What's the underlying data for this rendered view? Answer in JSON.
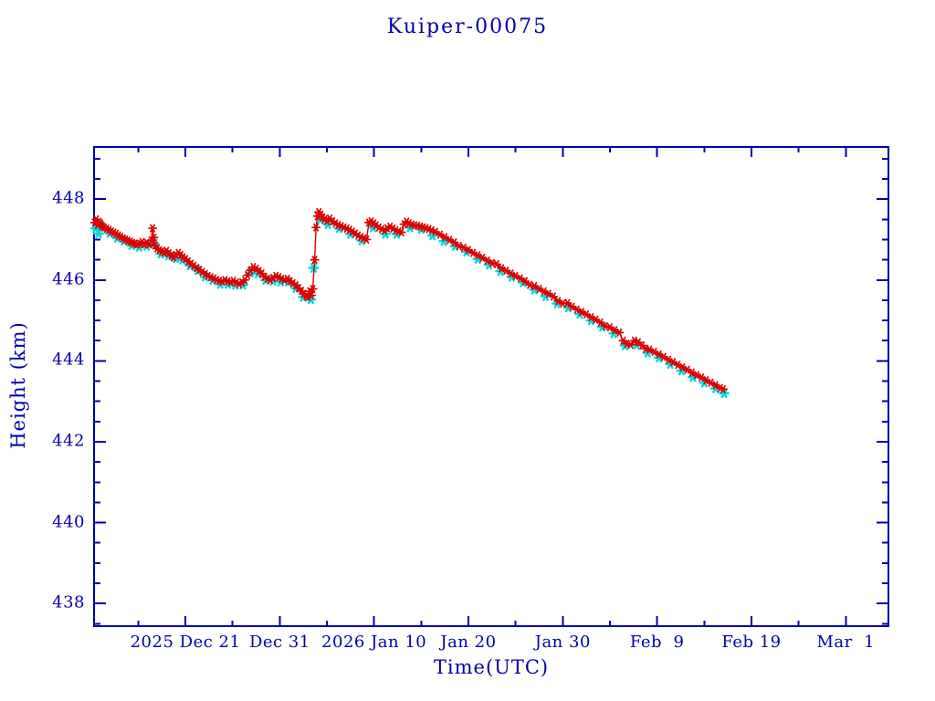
{
  "title": "Kuiper-00075",
  "colors": {
    "background": "#ffffff",
    "axis": "#0000aa",
    "text": "#0000aa",
    "red_series": "#dd0000",
    "cyan_series": "#00dcdc"
  },
  "chart_data": {
    "type": "line",
    "title": "Kuiper-00075",
    "xlabel": "Time(UTC)",
    "ylabel": "Height (km)",
    "grid": false,
    "legend": "none",
    "x_unit_days_since": "2025-12-21 00:00 UTC",
    "x_range": [
      -9.68,
      74.52
    ],
    "y_range": [
      437.44,
      449.29
    ],
    "x_major_ticks": [
      {
        "t": 0,
        "label": "2025 Dec 21"
      },
      {
        "t": 10,
        "label": "Dec 31"
      },
      {
        "t": 20,
        "label": "2026 Jan 10"
      },
      {
        "t": 30,
        "label": "Jan 20"
      },
      {
        "t": 40,
        "label": "Jan 30"
      },
      {
        "t": 50,
        "label": "Feb  9"
      },
      {
        "t": 60,
        "label": "Feb 19"
      },
      {
        "t": 70,
        "label": "Mar  1"
      }
    ],
    "x_minor_ticks": [
      -5,
      5,
      15,
      25,
      35,
      45,
      55,
      65
    ],
    "y_major_ticks": [
      448,
      446,
      444,
      442,
      440,
      438
    ],
    "y_minor_ticks": [
      449,
      448.5,
      447.5,
      447,
      446.5,
      445.5,
      445,
      444.5,
      443.5,
      443,
      442.5,
      441.5,
      441,
      440.5,
      439.5,
      439,
      438.5,
      437.5
    ],
    "series": [
      {
        "name": "height-red-asterisk",
        "marker": "asterisk",
        "color": "#dd0000",
        "connected": true,
        "points": [
          [
            -9.6,
            447.42
          ],
          [
            -9.45,
            447.5
          ],
          [
            -9.3,
            447.36
          ],
          [
            -9.15,
            447.44
          ],
          [
            -9.0,
            447.4
          ],
          [
            -8.8,
            447.32
          ],
          [
            -8.6,
            447.3
          ],
          [
            -8.35,
            447.27
          ],
          [
            -8.1,
            447.24
          ],
          [
            -7.85,
            447.2
          ],
          [
            -7.6,
            447.17
          ],
          [
            -7.35,
            447.14
          ],
          [
            -7.1,
            447.1
          ],
          [
            -6.85,
            447.07
          ],
          [
            -6.6,
            447.03
          ],
          [
            -6.35,
            447.0
          ],
          [
            -6.1,
            446.97
          ],
          [
            -5.85,
            446.95
          ],
          [
            -5.6,
            446.92
          ],
          [
            -5.35,
            446.9
          ],
          [
            -5.1,
            446.88
          ],
          [
            -4.85,
            446.9
          ],
          [
            -4.6,
            446.94
          ],
          [
            -4.35,
            446.88
          ],
          [
            -4.1,
            446.92
          ],
          [
            -3.85,
            446.88
          ],
          [
            -3.6,
            446.98
          ],
          [
            -3.48,
            447.28
          ],
          [
            -3.35,
            447.05
          ],
          [
            -3.2,
            446.85
          ],
          [
            -3.0,
            446.78
          ],
          [
            -2.75,
            446.74
          ],
          [
            -2.5,
            446.71
          ],
          [
            -2.25,
            446.68
          ],
          [
            -2.0,
            446.72
          ],
          [
            -1.75,
            446.66
          ],
          [
            -1.5,
            446.6
          ],
          [
            -1.25,
            446.56
          ],
          [
            -1.0,
            446.62
          ],
          [
            -0.75,
            446.67
          ],
          [
            -0.5,
            446.62
          ],
          [
            -0.25,
            446.56
          ],
          [
            0.0,
            446.52
          ],
          [
            0.3,
            446.46
          ],
          [
            0.6,
            446.4
          ],
          [
            0.9,
            446.35
          ],
          [
            1.2,
            446.3
          ],
          [
            1.5,
            446.25
          ],
          [
            1.8,
            446.2
          ],
          [
            2.1,
            446.15
          ],
          [
            2.4,
            446.1
          ],
          [
            2.7,
            446.07
          ],
          [
            3.0,
            446.04
          ],
          [
            3.3,
            446.0
          ],
          [
            3.6,
            445.98
          ],
          [
            3.9,
            445.96
          ],
          [
            4.2,
            446.0
          ],
          [
            4.5,
            445.97
          ],
          [
            4.8,
            445.94
          ],
          [
            5.1,
            445.98
          ],
          [
            5.4,
            445.94
          ],
          [
            5.7,
            445.9
          ],
          [
            6.0,
            445.94
          ],
          [
            6.3,
            446.0
          ],
          [
            6.6,
            446.12
          ],
          [
            6.9,
            446.24
          ],
          [
            7.2,
            446.32
          ],
          [
            7.5,
            446.28
          ],
          [
            7.8,
            446.22
          ],
          [
            8.1,
            446.16
          ],
          [
            8.4,
            446.08
          ],
          [
            8.7,
            446.03
          ],
          [
            9.0,
            446.0
          ],
          [
            9.3,
            446.05
          ],
          [
            9.6,
            446.1
          ],
          [
            9.9,
            446.07
          ],
          [
            10.2,
            446.03
          ],
          [
            10.5,
            446.0
          ],
          [
            10.8,
            446.03
          ],
          [
            11.1,
            445.97
          ],
          [
            11.4,
            445.92
          ],
          [
            11.7,
            445.87
          ],
          [
            12.0,
            445.8
          ],
          [
            12.3,
            445.73
          ],
          [
            12.55,
            445.66
          ],
          [
            12.8,
            445.6
          ],
          [
            13.0,
            445.58
          ],
          [
            13.2,
            445.72
          ],
          [
            13.35,
            445.62
          ],
          [
            13.5,
            445.78
          ],
          [
            13.7,
            446.5
          ],
          [
            13.85,
            447.3
          ],
          [
            14.0,
            447.58
          ],
          [
            14.15,
            447.68
          ],
          [
            14.35,
            447.62
          ],
          [
            14.55,
            447.55
          ],
          [
            14.75,
            447.5
          ],
          [
            15.0,
            447.46
          ],
          [
            15.3,
            447.52
          ],
          [
            15.6,
            447.45
          ],
          [
            15.9,
            447.4
          ],
          [
            16.2,
            447.36
          ],
          [
            16.5,
            447.33
          ],
          [
            16.8,
            447.3
          ],
          [
            17.1,
            447.27
          ],
          [
            17.4,
            447.24
          ],
          [
            17.7,
            447.2
          ],
          [
            18.0,
            447.15
          ],
          [
            18.3,
            447.1
          ],
          [
            18.6,
            447.06
          ],
          [
            18.9,
            447.03
          ],
          [
            19.2,
            447.0
          ],
          [
            19.45,
            447.42
          ],
          [
            19.7,
            447.45
          ],
          [
            19.95,
            447.4
          ],
          [
            20.2,
            447.35
          ],
          [
            20.5,
            447.3
          ],
          [
            20.8,
            447.26
          ],
          [
            21.1,
            447.22
          ],
          [
            21.4,
            447.28
          ],
          [
            21.7,
            447.32
          ],
          [
            22.0,
            447.27
          ],
          [
            22.3,
            447.23
          ],
          [
            22.6,
            447.2
          ],
          [
            22.9,
            447.18
          ],
          [
            23.2,
            447.38
          ],
          [
            23.45,
            447.44
          ],
          [
            23.7,
            447.4
          ],
          [
            24.0,
            447.37
          ],
          [
            24.3,
            447.35
          ],
          [
            24.6,
            447.34
          ],
          [
            24.9,
            447.32
          ],
          [
            25.2,
            447.3
          ],
          [
            25.5,
            447.28
          ],
          [
            25.8,
            447.26
          ],
          [
            26.1,
            447.23
          ],
          [
            26.5,
            447.19
          ],
          [
            27.0,
            447.12
          ],
          [
            27.5,
            447.06
          ],
          [
            28.0,
            446.99
          ],
          [
            28.5,
            446.93
          ],
          [
            29.0,
            446.84
          ],
          [
            29.5,
            446.8
          ],
          [
            30.0,
            446.74
          ],
          [
            30.5,
            446.67
          ],
          [
            31.0,
            446.61
          ],
          [
            31.5,
            446.55
          ],
          [
            32.0,
            446.48
          ],
          [
            32.5,
            446.42
          ],
          [
            33.0,
            446.39
          ],
          [
            33.5,
            446.29
          ],
          [
            34.0,
            446.23
          ],
          [
            34.5,
            446.16
          ],
          [
            35.0,
            446.1
          ],
          [
            35.5,
            446.04
          ],
          [
            36.0,
            445.97
          ],
          [
            36.5,
            445.88
          ],
          [
            37.0,
            445.85
          ],
          [
            37.5,
            445.78
          ],
          [
            38.0,
            445.72
          ],
          [
            38.5,
            445.66
          ],
          [
            39.0,
            445.59
          ],
          [
            39.5,
            445.48
          ],
          [
            40.0,
            445.42
          ],
          [
            40.5,
            445.43
          ],
          [
            41.0,
            445.34
          ],
          [
            41.5,
            445.27
          ],
          [
            42.0,
            445.21
          ],
          [
            42.5,
            445.15
          ],
          [
            43.0,
            445.08
          ],
          [
            43.5,
            445.02
          ],
          [
            44.0,
            444.95
          ],
          [
            44.5,
            444.86
          ],
          [
            45.0,
            444.83
          ],
          [
            45.5,
            444.76
          ],
          [
            46.0,
            444.7
          ],
          [
            46.4,
            444.5
          ],
          [
            46.8,
            444.42
          ],
          [
            47.2,
            444.4
          ],
          [
            47.6,
            444.5
          ],
          [
            48.0,
            444.46
          ],
          [
            48.4,
            444.38
          ],
          [
            48.8,
            444.3
          ],
          [
            49.2,
            444.28
          ],
          [
            49.7,
            444.22
          ],
          [
            50.2,
            444.16
          ],
          [
            50.7,
            444.1
          ],
          [
            51.2,
            444.03
          ],
          [
            51.7,
            443.97
          ],
          [
            52.2,
            443.9
          ],
          [
            52.7,
            443.84
          ],
          [
            53.2,
            443.78
          ],
          [
            53.7,
            443.71
          ],
          [
            54.2,
            443.65
          ],
          [
            54.7,
            443.59
          ],
          [
            55.2,
            443.52
          ],
          [
            55.7,
            443.46
          ],
          [
            56.2,
            443.4
          ],
          [
            56.7,
            443.33
          ],
          [
            57.0,
            443.3
          ]
        ]
      },
      {
        "name": "height-cyan-asterisk",
        "marker": "asterisk",
        "color": "#00dcdc",
        "connected": false,
        "points": [
          [
            -9.5,
            447.28
          ],
          [
            -9.2,
            447.15
          ],
          [
            -8.9,
            447.32
          ],
          [
            -8.0,
            447.16
          ],
          [
            -7.2,
            447.04
          ],
          [
            -6.5,
            446.97
          ],
          [
            -5.7,
            446.86
          ],
          [
            -4.9,
            446.82
          ],
          [
            -4.1,
            446.84
          ],
          [
            -3.3,
            446.9
          ],
          [
            -2.6,
            446.65
          ],
          [
            -1.8,
            446.6
          ],
          [
            -1.0,
            446.54
          ],
          [
            -0.3,
            446.5
          ],
          [
            0.5,
            446.36
          ],
          [
            1.3,
            446.24
          ],
          [
            2.1,
            446.08
          ],
          [
            2.9,
            446.0
          ],
          [
            3.7,
            445.9
          ],
          [
            4.5,
            445.9
          ],
          [
            5.3,
            445.88
          ],
          [
            6.1,
            445.88
          ],
          [
            6.9,
            446.18
          ],
          [
            7.7,
            446.16
          ],
          [
            8.5,
            446.0
          ],
          [
            9.3,
            445.98
          ],
          [
            10.1,
            445.96
          ],
          [
            10.9,
            445.96
          ],
          [
            11.7,
            445.8
          ],
          [
            12.5,
            445.58
          ],
          [
            13.3,
            445.52
          ],
          [
            13.6,
            446.3
          ],
          [
            14.3,
            447.5
          ],
          [
            15.1,
            447.38
          ],
          [
            16.3,
            447.28
          ],
          [
            17.5,
            447.14
          ],
          [
            18.7,
            446.98
          ],
          [
            19.9,
            447.3
          ],
          [
            21.2,
            447.14
          ],
          [
            22.4,
            447.14
          ],
          [
            23.8,
            447.3
          ],
          [
            25.0,
            447.26
          ],
          [
            26.2,
            447.1
          ],
          [
            27.4,
            446.96
          ],
          [
            28.6,
            446.84
          ],
          [
            29.8,
            446.7
          ],
          [
            31.0,
            446.52
          ],
          [
            32.2,
            446.38
          ],
          [
            33.4,
            446.22
          ],
          [
            34.6,
            446.08
          ],
          [
            35.8,
            445.94
          ],
          [
            37.0,
            445.76
          ],
          [
            38.2,
            445.6
          ],
          [
            39.4,
            445.42
          ],
          [
            40.6,
            445.32
          ],
          [
            41.8,
            445.16
          ],
          [
            43.0,
            445.0
          ],
          [
            44.2,
            444.84
          ],
          [
            45.4,
            444.68
          ],
          [
            46.6,
            444.38
          ],
          [
            47.8,
            444.4
          ],
          [
            49.0,
            444.2
          ],
          [
            50.2,
            444.08
          ],
          [
            51.4,
            443.92
          ],
          [
            52.6,
            443.76
          ],
          [
            53.8,
            443.6
          ],
          [
            55.0,
            443.46
          ],
          [
            56.2,
            443.32
          ],
          [
            57.1,
            443.2
          ]
        ]
      }
    ]
  }
}
